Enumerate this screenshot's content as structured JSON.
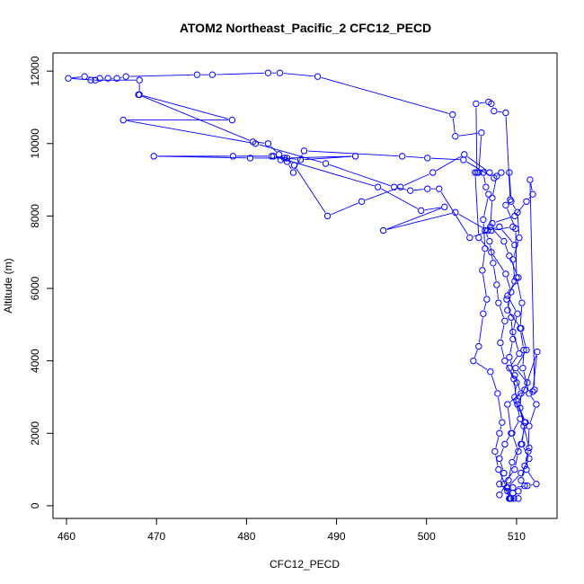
{
  "chart_data": {
    "type": "scatter",
    "title": "ATOM2 Northeast_Pacific_2 CFC12_PECD",
    "xlabel": "CFC12_PECD",
    "ylabel": "Altitude (m)",
    "xlim": [
      458.5,
      514.5
    ],
    "ylim": [
      -350,
      12500
    ],
    "x_ticks": [
      460,
      470,
      480,
      490,
      500,
      510
    ],
    "y_ticks": [
      0,
      2000,
      4000,
      6000,
      8000,
      10000,
      12000
    ],
    "grid": false,
    "legend": "none",
    "color": "#0000ff",
    "marker": "open-circle",
    "connected": true,
    "series": [
      {
        "values": [
          [
            509.2,
            200
          ],
          [
            508.6,
            600
          ],
          [
            509.8,
            1000
          ],
          [
            510.2,
            1500
          ],
          [
            509.5,
            2000
          ],
          [
            510.4,
            2400
          ],
          [
            509.8,
            3000
          ],
          [
            510.0,
            3400
          ],
          [
            509.2,
            3800
          ],
          [
            510.3,
            4200
          ],
          [
            509.6,
            4800
          ],
          [
            510.1,
            5300
          ],
          [
            509.0,
            5800
          ],
          [
            510.2,
            6300
          ],
          [
            509.2,
            6900
          ],
          [
            508.6,
            7300
          ],
          [
            507.1,
            7700
          ],
          [
            507.3,
            8500
          ],
          [
            507.8,
            9100
          ],
          [
            507.0,
            9200
          ],
          [
            504.2,
            9700
          ],
          [
            500.7,
            9200
          ],
          [
            497.1,
            8800
          ],
          [
            492.8,
            8400
          ],
          [
            489.0,
            8000
          ],
          [
            485.3,
            9400
          ],
          [
            484.2,
            9600
          ],
          [
            482.8,
            9650
          ],
          [
            478.5,
            9650
          ],
          [
            469.7,
            9650
          ],
          [
            480.4,
            9600
          ],
          [
            484.5,
            9600
          ],
          [
            492.1,
            9650
          ],
          [
            486.0,
            9550
          ],
          [
            483.0,
            9650
          ],
          [
            494.6,
            8800
          ],
          [
            499.4,
            8150
          ],
          [
            502.0,
            8250
          ],
          [
            495.2,
            7600
          ],
          [
            503.2,
            8100
          ],
          [
            506.8,
            7600
          ],
          [
            508.1,
            7700
          ],
          [
            509.8,
            7200
          ]
        ]
      },
      {
        "values": [
          [
            509.4,
            200
          ],
          [
            509.0,
            500
          ],
          [
            510.5,
            900
          ],
          [
            511.4,
            1300
          ],
          [
            510.6,
            1700
          ],
          [
            510.9,
            2300
          ],
          [
            510.1,
            2800
          ],
          [
            511.2,
            3400
          ],
          [
            509.9,
            3800
          ],
          [
            511.1,
            4300
          ],
          [
            510.5,
            4900
          ],
          [
            509.0,
            5400
          ],
          [
            509.4,
            5900
          ],
          [
            508.8,
            6400
          ],
          [
            507.2,
            7000
          ],
          [
            505.8,
            7400
          ],
          [
            505.4,
            9200
          ],
          [
            505.8,
            9200
          ],
          [
            506.1,
            10300
          ],
          [
            503.2,
            10200
          ],
          [
            502.9,
            10800
          ],
          [
            487.9,
            11850
          ],
          [
            483.7,
            11950
          ],
          [
            482.4,
            11950
          ],
          [
            476.2,
            11900
          ],
          [
            474.5,
            11900
          ],
          [
            466.6,
            11850
          ],
          [
            465.6,
            11800
          ],
          [
            464.6,
            11800
          ],
          [
            463.7,
            11800
          ],
          [
            462.0,
            11850
          ],
          [
            460.2,
            11800
          ],
          [
            463.2,
            11750
          ],
          [
            462.7,
            11750
          ],
          [
            468.1,
            11750
          ],
          [
            468.1,
            11350
          ],
          [
            478.4,
            10650
          ],
          [
            466.3,
            10650
          ],
          [
            481.0,
            10000
          ],
          [
            488.8,
            9450
          ],
          [
            496.4,
            8800
          ],
          [
            498.2,
            8700
          ],
          [
            500.1,
            8750
          ],
          [
            501.4,
            8750
          ],
          [
            504.8,
            7400
          ],
          [
            507.2,
            7600
          ],
          [
            509.6,
            7700
          ]
        ]
      },
      {
        "values": [
          [
            509.3,
            200
          ],
          [
            508.9,
            500
          ],
          [
            508.0,
            1000
          ],
          [
            507.6,
            1500
          ],
          [
            508.1,
            2000
          ],
          [
            508.4,
            2300
          ],
          [
            507.9,
            3100
          ],
          [
            507.1,
            3700
          ],
          [
            505.2,
            4000
          ],
          [
            505.8,
            4400
          ],
          [
            506.3,
            5300
          ],
          [
            506.7,
            5700
          ],
          [
            506.2,
            6500
          ],
          [
            506.5,
            7100
          ],
          [
            506.3,
            7900
          ],
          [
            506.9,
            8600
          ],
          [
            506.6,
            8800
          ],
          [
            506.3,
            9200
          ],
          [
            505.6,
            9200
          ],
          [
            505.5,
            11100
          ],
          [
            506.9,
            11150
          ],
          [
            507.2,
            11100
          ],
          [
            507.5,
            10900
          ],
          [
            508.8,
            10850
          ],
          [
            509.3,
            8450
          ],
          [
            508.8,
            8300
          ],
          [
            509.9,
            7650
          ],
          [
            510.0,
            6300
          ],
          [
            510.6,
            5600
          ],
          [
            510.4,
            4900
          ],
          [
            510.8,
            4300
          ],
          [
            510.7,
            3800
          ],
          [
            511.4,
            3100
          ],
          [
            512.2,
            2800
          ],
          [
            511.4,
            2200
          ],
          [
            511.3,
            1500
          ],
          [
            511.1,
            1000
          ],
          [
            512.2,
            600
          ],
          [
            511.2,
            550
          ],
          [
            509.6,
            500
          ],
          [
            509.0,
            400
          ],
          [
            509.2,
            200
          ]
        ]
      },
      {
        "values": [
          [
            509.7,
            200
          ],
          [
            510.2,
            400
          ],
          [
            510.9,
            550
          ],
          [
            510.5,
            700
          ],
          [
            510.9,
            1100
          ],
          [
            511.4,
            1600
          ],
          [
            510.8,
            2200
          ],
          [
            510.4,
            2700
          ],
          [
            510.5,
            3100
          ],
          [
            509.8,
            3600
          ],
          [
            509.2,
            4100
          ],
          [
            509.6,
            4600
          ],
          [
            509.4,
            5200
          ],
          [
            508.9,
            5700
          ],
          [
            509.8,
            6200
          ],
          [
            509.6,
            6800
          ],
          [
            510.3,
            7400
          ],
          [
            510.1,
            8100
          ],
          [
            509.4,
            8400
          ],
          [
            509.2,
            9200
          ],
          [
            508.3,
            9200
          ],
          [
            507.5,
            9050
          ],
          [
            504.1,
            9550
          ],
          [
            500.1,
            9600
          ],
          [
            497.3,
            9650
          ],
          [
            486.4,
            9800
          ],
          [
            485.2,
            9200
          ],
          [
            484.5,
            9500
          ],
          [
            483.8,
            9550
          ],
          [
            483.6,
            9700
          ],
          [
            482.4,
            10000
          ],
          [
            480.7,
            10050
          ],
          [
            468.0,
            11350
          ]
        ]
      },
      {
        "values": [
          [
            508.1,
            300
          ],
          [
            509.1,
            700
          ],
          [
            509.5,
            1200
          ],
          [
            510.5,
            1700
          ],
          [
            511.0,
            2300
          ],
          [
            510.0,
            2900
          ],
          [
            509.7,
            3500
          ],
          [
            508.7,
            4000
          ],
          [
            508.2,
            4500
          ],
          [
            508.7,
            5100
          ],
          [
            508.0,
            5600
          ],
          [
            507.8,
            6100
          ],
          [
            507.4,
            6700
          ],
          [
            507.0,
            7300
          ],
          [
            506.5,
            7600
          ],
          [
            507.3,
            7800
          ],
          [
            509.8,
            8000
          ],
          [
            511.1,
            8400
          ],
          [
            511.8,
            8600
          ],
          [
            511.5,
            9000
          ],
          [
            512.0,
            3200
          ],
          [
            511.8,
            3150
          ],
          [
            512.3,
            4250
          ],
          [
            510.9,
            3200
          ],
          [
            509.0,
            2800
          ],
          [
            509.4,
            2000
          ],
          [
            508.7,
            1700
          ],
          [
            508.1,
            1300
          ],
          [
            508.6,
            900
          ],
          [
            508.1,
            600
          ],
          [
            509.6,
            350
          ],
          [
            510.2,
            200
          ]
        ]
      }
    ]
  }
}
